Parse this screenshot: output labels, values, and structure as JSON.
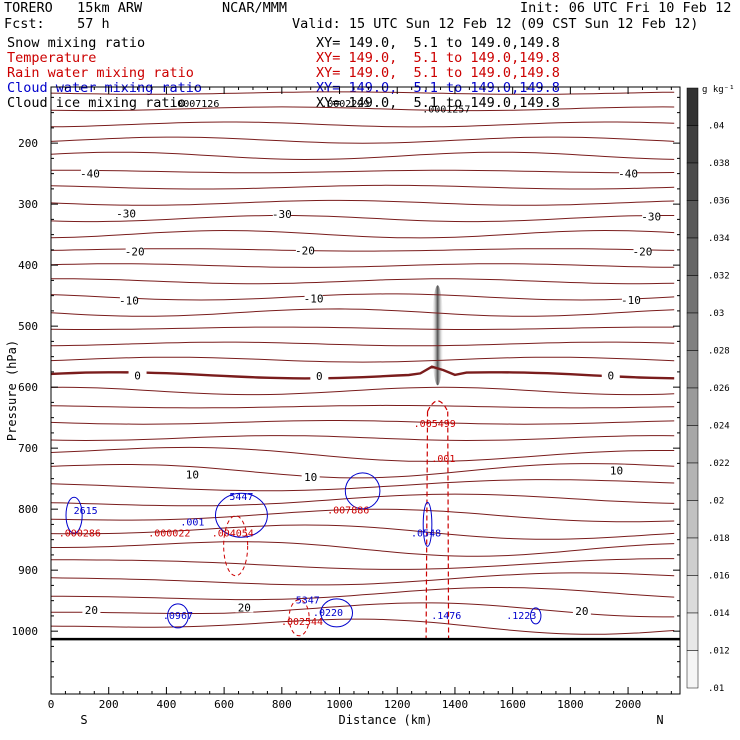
{
  "header": {
    "model": "TORERO   15km ARW",
    "org": "NCAR/MMM",
    "init": "Init: 06 UTC Fri 10 Feb 12",
    "fcst": "Fcst:    57 h",
    "valid": "Valid: 15 UTC Sun 12 Feb 12 (09 CST Sun 12 Feb 12)"
  },
  "fields": [
    {
      "name": "Snow mixing ratio",
      "xy": "XY= 149.0,  5.1 to 149.0,149.8",
      "color": "#000000"
    },
    {
      "name": "Temperature",
      "xy": "XY= 149.0,  5.1 to 149.0,149.8",
      "color": "#cc0000"
    },
    {
      "name": "Rain water mixing ratio",
      "xy": "XY= 149.0,  5.1 to 149.0,149.8",
      "color": "#cc0000"
    },
    {
      "name": "Cloud water mixing ratio",
      "xy": "XY= 149.0,  5.1 to 149.0,149.8",
      "color": "#0000cc"
    },
    {
      "name": "Cloud ice mixing ratio",
      "xy": "XY= 149.0,  5.1 to 149.0,149.8",
      "color": "#000000"
    }
  ],
  "chart_data": {
    "type": "contour-cross-section",
    "xlabel": "Distance (km)",
    "ylabel": "Pressure (hPa)",
    "xlim": [
      0,
      2180
    ],
    "ylim": [
      1100,
      100
    ],
    "xticks": [
      0,
      200,
      400,
      600,
      800,
      1000,
      1200,
      1400,
      1600,
      1800,
      2000
    ],
    "yticks": [
      200,
      300,
      400,
      500,
      600,
      700,
      800,
      900,
      1000
    ],
    "direction_labels": {
      "left": "S",
      "right": "N"
    },
    "temperature_contour_labels": [
      {
        "value": "-40",
        "x": 135,
        "p": 250
      },
      {
        "value": "-40",
        "x": 2000,
        "p": 250
      },
      {
        "value": "-30",
        "x": 260,
        "p": 315
      },
      {
        "value": "-30",
        "x": 800,
        "p": 316
      },
      {
        "value": "-30",
        "x": 2080,
        "p": 320
      },
      {
        "value": "-20",
        "x": 290,
        "p": 378
      },
      {
        "value": "-20",
        "x": 880,
        "p": 376
      },
      {
        "value": "-20",
        "x": 2050,
        "p": 378
      },
      {
        "value": "-10",
        "x": 270,
        "p": 458
      },
      {
        "value": "-10",
        "x": 910,
        "p": 455
      },
      {
        "value": "-10",
        "x": 2010,
        "p": 457
      },
      {
        "value": "0",
        "x": 300,
        "p": 581
      },
      {
        "value": "0",
        "x": 930,
        "p": 582
      },
      {
        "value": "0",
        "x": 1940,
        "p": 581
      },
      {
        "value": "10",
        "x": 490,
        "p": 743
      },
      {
        "value": "10",
        "x": 900,
        "p": 747
      },
      {
        "value": "10",
        "x": 1960,
        "p": 737
      },
      {
        "value": "20",
        "x": 140,
        "p": 965
      },
      {
        "value": "20",
        "x": 670,
        "p": 961
      },
      {
        "value": "20",
        "x": 1840,
        "p": 967
      }
    ],
    "rain_maxima": [
      {
        "label": ".000286",
        "x": 100,
        "p": 845
      },
      {
        "label": ".000022",
        "x": 410,
        "p": 845
      },
      {
        "label": ".004054",
        "x": 630,
        "p": 845
      },
      {
        "label": ".007886",
        "x": 1030,
        "p": 807
      },
      {
        "label": ".005499",
        "x": 1330,
        "p": 665
      },
      {
        "label": ".002544",
        "x": 870,
        "p": 990
      },
      {
        "label": ".001",
        "x": 1360,
        "p": 723
      }
    ],
    "cloud_water_maxima": [
      {
        "label": "2615",
        "x": 120,
        "p": 808
      },
      {
        "label": "5447",
        "x": 660,
        "p": 785
      },
      {
        "label": ".001",
        "x": 490,
        "p": 827
      },
      {
        "label": ".0548",
        "x": 1300,
        "p": 845
      },
      {
        "label": ".0967",
        "x": 440,
        "p": 980
      },
      {
        "label": "5347",
        "x": 890,
        "p": 955
      },
      {
        "label": ".0220",
        "x": 960,
        "p": 975
      },
      {
        "label": ".1476",
        "x": 1370,
        "p": 980
      },
      {
        "label": ".1223",
        "x": 1630,
        "p": 980
      }
    ],
    "snow_maxima": [
      {
        "label": ".0007126",
        "x": 500,
        "p": 141
      },
      {
        "label": ".0002229",
        "x": 1020,
        "p": 141
      },
      {
        "label": ".0001257",
        "x": 1370,
        "p": 150
      }
    ],
    "colorbar": {
      "unit": "g kg⁻¹",
      "levels": [
        ".04",
        ".038",
        ".036",
        ".034",
        ".032",
        ".03",
        ".028",
        ".026",
        ".024",
        ".022",
        ".02",
        ".018",
        ".016",
        ".014",
        ".012",
        ".01"
      ]
    }
  }
}
